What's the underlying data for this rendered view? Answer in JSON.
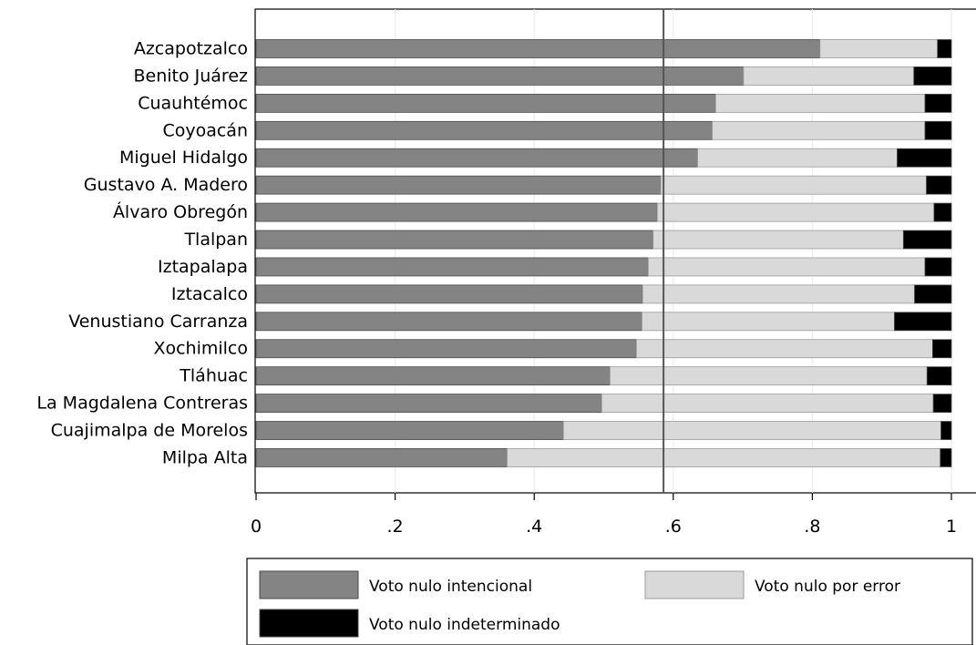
{
  "chart_data": {
    "type": "bar",
    "orientation": "horizontal",
    "stacked": true,
    "title": "",
    "xlabel": "",
    "ylabel": "",
    "xlim": [
      0,
      1
    ],
    "xticks": [
      "0",
      ".2",
      ".4",
      ".6",
      ".8",
      "1"
    ],
    "xtick_values": [
      0,
      0.2,
      0.4,
      0.6,
      0.8,
      1
    ],
    "grid": "vertical",
    "reference_line": 0.586,
    "legend_position": "bottom",
    "categories": [
      "Azcapotzalco",
      "Benito Juárez",
      "Cuauhtémoc",
      "Coyoacán",
      "Miguel Hidalgo",
      "Gustavo A. Madero",
      "Álvaro Obregón",
      "Tlalpan",
      "Iztapalapa",
      "Iztacalco",
      "Venustiano Carranza",
      "Xochimilco",
      "Tláhuac",
      "La Magdalena Contreras",
      "Cuajimalpa de Morelos",
      "Milpa Alta"
    ],
    "series": [
      {
        "name": "Voto nulo intencional",
        "color": "#848484",
        "values": [
          0.811,
          0.701,
          0.661,
          0.656,
          0.635,
          0.582,
          0.577,
          0.571,
          0.564,
          0.556,
          0.555,
          0.547,
          0.509,
          0.497,
          0.442,
          0.361
        ]
      },
      {
        "name": "Voto nulo por error",
        "color": "#d9d9d9",
        "values": [
          0.169,
          0.245,
          0.301,
          0.306,
          0.287,
          0.382,
          0.398,
          0.36,
          0.398,
          0.391,
          0.363,
          0.426,
          0.456,
          0.477,
          0.543,
          0.623
        ]
      },
      {
        "name": "Voto nulo indeterminado",
        "color": "#000000",
        "values": [
          0.02,
          0.054,
          0.038,
          0.038,
          0.078,
          0.036,
          0.025,
          0.069,
          0.038,
          0.053,
          0.082,
          0.027,
          0.035,
          0.026,
          0.015,
          0.016
        ]
      }
    ]
  }
}
